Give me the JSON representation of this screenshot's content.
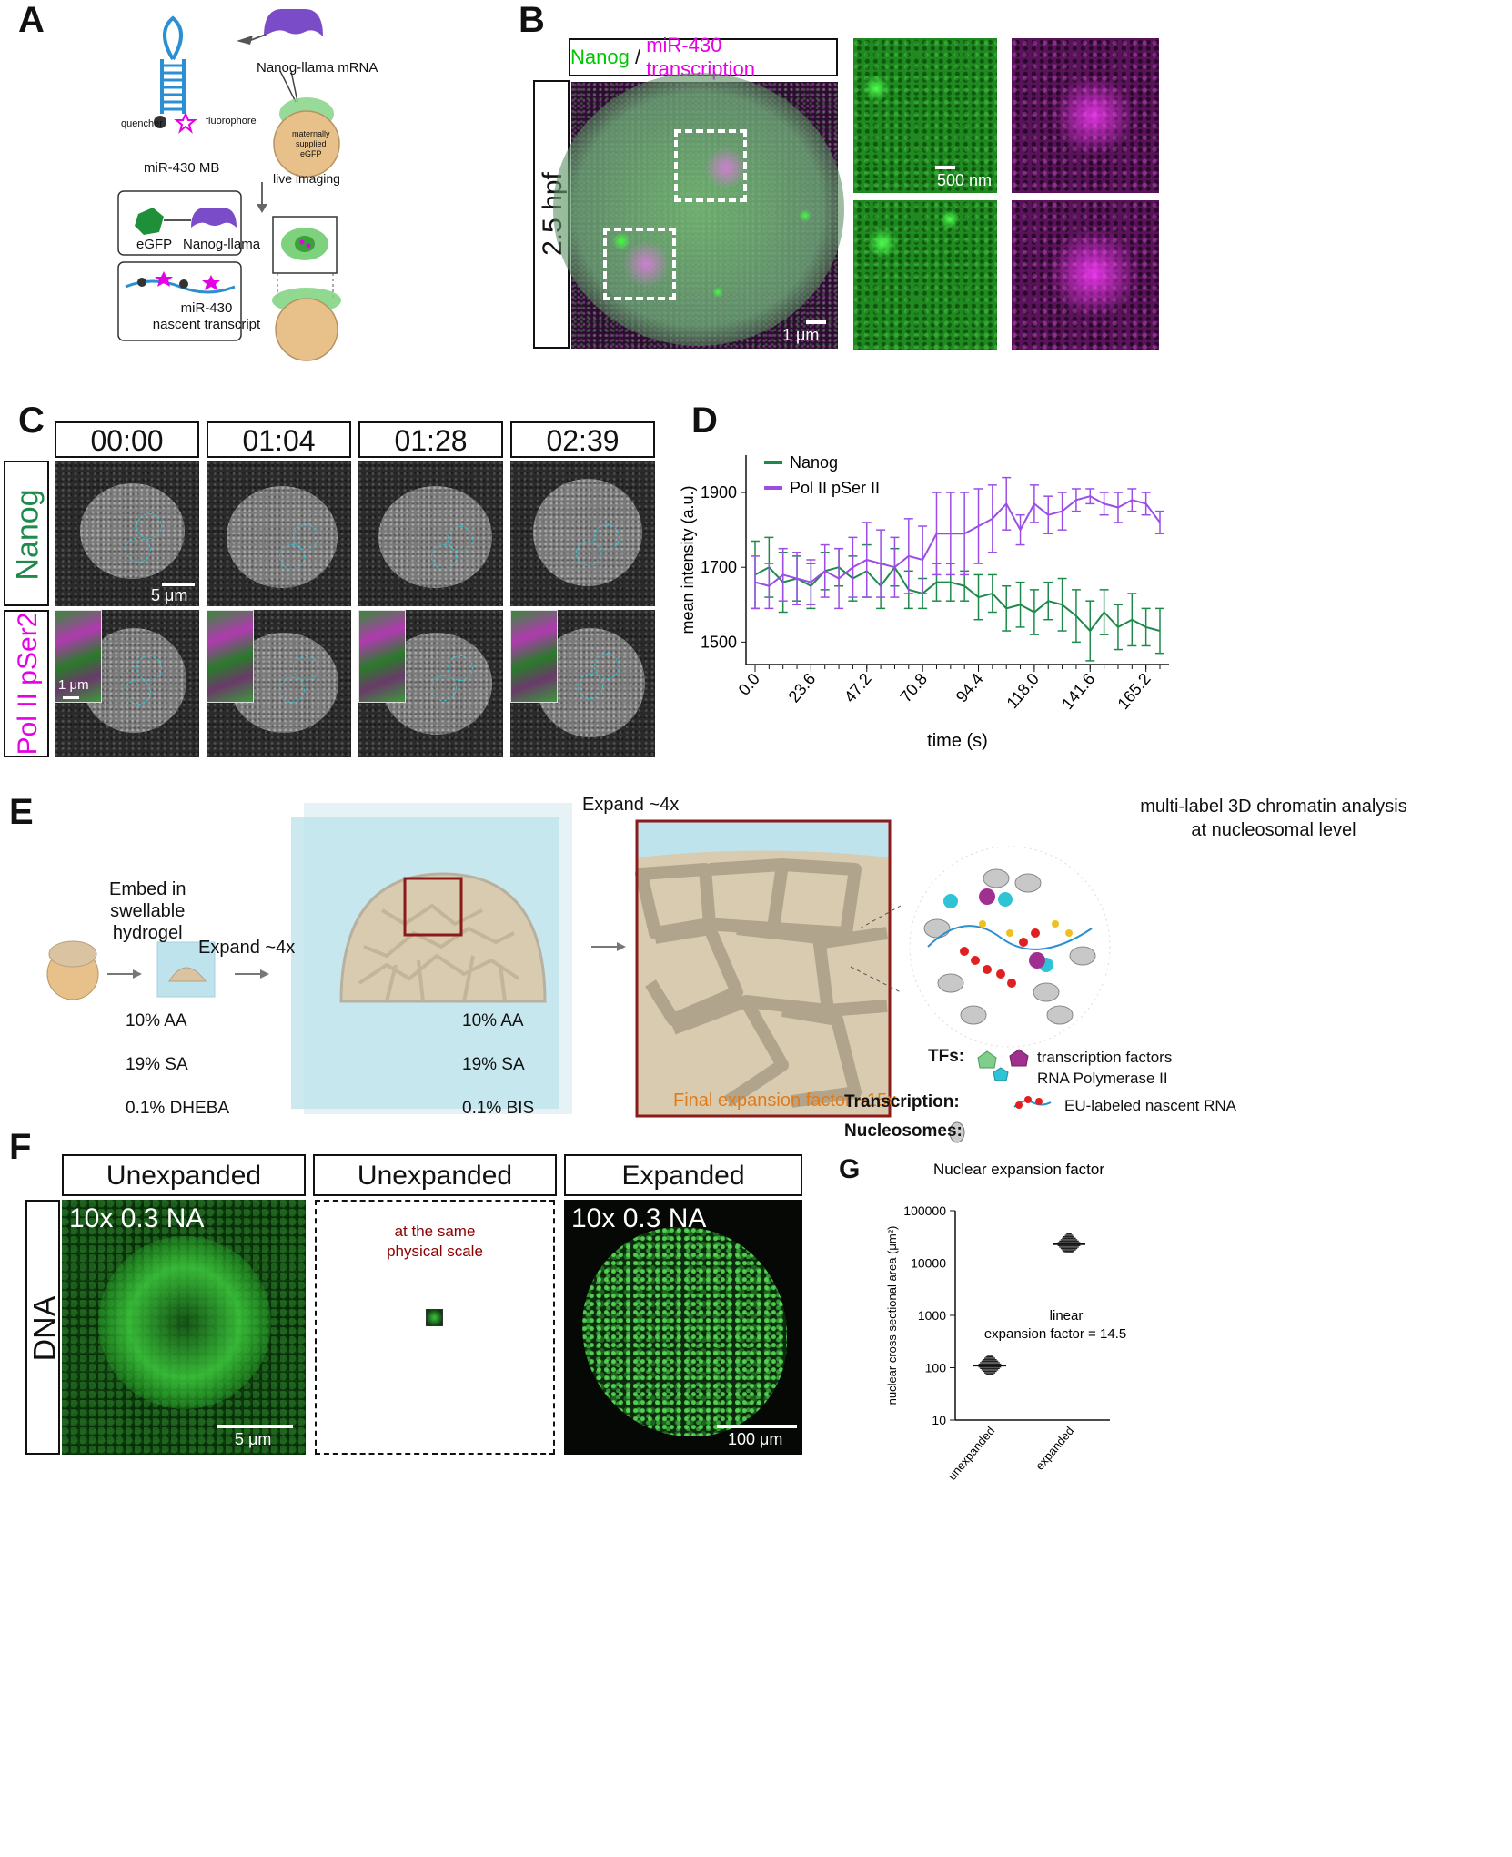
{
  "panels": {
    "A": {
      "letter": "A",
      "mrna_label": "Nanog-llama mRNA",
      "quencher": "quencher",
      "fluorophore": "fluorophore",
      "mb_label": "miR-430 MB",
      "maternal": [
        "maternally",
        "supplied",
        "eGFP"
      ],
      "live_imaging": "live imaging",
      "egfp": "eGFP",
      "nanog_llama": "Nanog-llama",
      "nascent": [
        "miR-430",
        "nascent transcript"
      ]
    },
    "B": {
      "letter": "B",
      "title_nanog": "Nanog",
      "title_sep": " / ",
      "title_mir": "miR-430 transcription",
      "stage": "2.5 hpf",
      "scale_main": "1 μm",
      "scale_inset": "500 nm"
    },
    "C": {
      "letter": "C",
      "times": [
        "00:00",
        "01:04",
        "01:28",
        "02:39"
      ],
      "row1": "Nanog",
      "row2_a": "Pol II ",
      "row2_b": "pSer2",
      "scale_main": "5 μm",
      "scale_inset": "1 μm"
    },
    "D": {
      "letter": "D",
      "ylabel": "mean intensity (a.u.)",
      "xlabel": "time (s)",
      "legend": [
        "Nanog",
        "Pol II pSer II"
      ]
    },
    "E": {
      "letter": "E",
      "embed": [
        "Embed in",
        "swellable",
        "hydrogel"
      ],
      "expand1": "Expand ~4x",
      "expand2": "Expand ~4x",
      "chem1": [
        "10% AA",
        "19% SA",
        "0.1% DHEBA"
      ],
      "chem2": [
        "10% AA",
        "19% SA",
        "0.1% BIS"
      ],
      "final": "Final expansion factor ~15x",
      "analysis": [
        "multi-label 3D chromatin analysis",
        "at nucleosomal level"
      ],
      "tfs_head": "TFs:",
      "tf1": "transcription factors",
      "tf2": "RNA Polymerase II",
      "transcription_head": "Transcription:",
      "transcription_item": "EU-labeled nascent RNA",
      "nucleosomes_head": "Nucleosomes:"
    },
    "F": {
      "letter": "F",
      "titles": [
        "Unexpanded",
        "Unexpanded",
        "Expanded"
      ],
      "row": "DNA",
      "obj1": "10x 0.3 NA",
      "obj3": "10x 0.3 NA",
      "same_scale": [
        "at the same",
        "physical scale"
      ],
      "scale1": "5 μm",
      "scale3": "100 μm"
    },
    "G": {
      "letter": "G",
      "title": "Nuclear expansion factor",
      "ylabel": "nuclear cross sectional area (μm²)",
      "annotation": [
        "linear",
        "expansion factor = 14.5"
      ]
    }
  },
  "colors": {
    "nanog_green": "#00c800",
    "mir_magenta": "#e600e6",
    "nanog_line": "#1e8a4a",
    "pol2_line": "#9b4ee6",
    "final_orange": "#e07b1a",
    "same_scale_red": "#8b0000"
  },
  "chart_data": [
    {
      "type": "line",
      "title": "",
      "xlabel": "time (s)",
      "ylabel": "mean intensity (a.u.)",
      "x_ticks": [
        0.0,
        23.6,
        47.2,
        70.8,
        94.4,
        118.0,
        141.6,
        165.2
      ],
      "ylim": [
        1440,
        2000
      ],
      "y_ticks": [
        1500,
        1700,
        1900
      ],
      "x": [
        0,
        5.9,
        11.8,
        17.7,
        23.6,
        29.5,
        35.4,
        41.3,
        47.2,
        53.1,
        59.0,
        64.9,
        70.8,
        76.7,
        82.6,
        88.5,
        94.4,
        100.3,
        106.2,
        112.1,
        118.0,
        123.9,
        129.8,
        135.7,
        141.6,
        147.5,
        153.4,
        159.3,
        165.2,
        171.1
      ],
      "series": [
        {
          "name": "Nanog",
          "values": [
            1680,
            1700,
            1660,
            1670,
            1650,
            1690,
            1700,
            1670,
            1690,
            1650,
            1700,
            1640,
            1630,
            1660,
            1660,
            1650,
            1620,
            1630,
            1590,
            1600,
            1580,
            1610,
            1600,
            1570,
            1530,
            1580,
            1540,
            1560,
            1540,
            1530
          ],
          "err": [
            90,
            80,
            80,
            60,
            60,
            50,
            50,
            60,
            70,
            60,
            50,
            50,
            40,
            50,
            50,
            40,
            60,
            50,
            60,
            60,
            60,
            50,
            70,
            70,
            80,
            60,
            60,
            70,
            50,
            60
          ]
        },
        {
          "name": "Pol II pSer II",
          "values": [
            1660,
            1650,
            1680,
            1670,
            1660,
            1690,
            1670,
            1700,
            1720,
            1710,
            1700,
            1730,
            1720,
            1790,
            1790,
            1790,
            1810,
            1830,
            1870,
            1800,
            1870,
            1840,
            1850,
            1880,
            1890,
            1870,
            1860,
            1880,
            1870,
            1820
          ],
          "err": [
            70,
            60,
            70,
            70,
            60,
            70,
            80,
            80,
            100,
            90,
            80,
            100,
            90,
            110,
            110,
            110,
            100,
            90,
            70,
            40,
            50,
            50,
            50,
            30,
            20,
            30,
            40,
            30,
            30,
            30
          ]
        }
      ]
    },
    {
      "type": "scatter",
      "title": "Nuclear expansion factor",
      "ylabel": "nuclear cross sectional area (μm²)",
      "y_scale": "log",
      "ylim": [
        10,
        100000
      ],
      "y_ticks": [
        10,
        100,
        1000,
        10000,
        100000
      ],
      "categories": [
        "unexpanded",
        "expanded"
      ],
      "values": [
        110,
        23000
      ]
    }
  ]
}
